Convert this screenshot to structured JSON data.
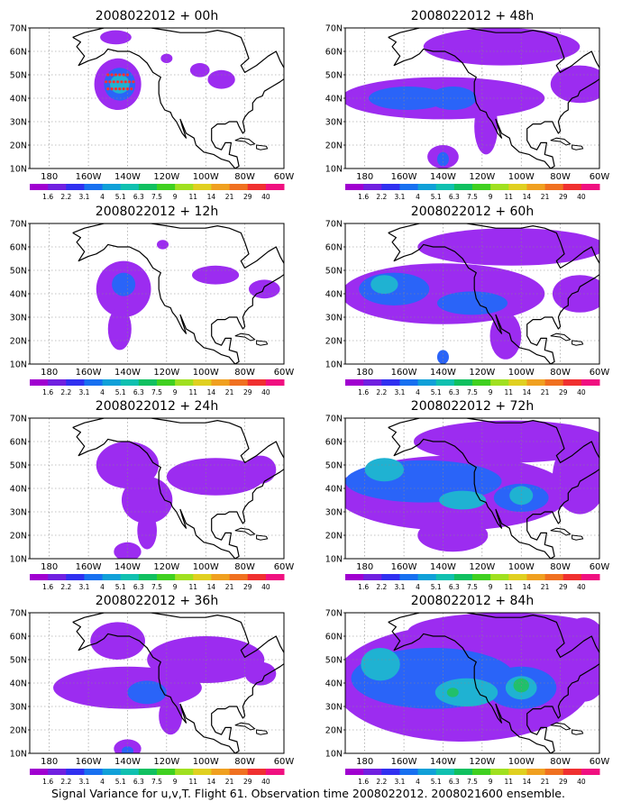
{
  "panels": [
    {
      "title": "2008022012 + 00h",
      "lead": "00h",
      "blobs": [
        {
          "lon": -145,
          "lat": 46,
          "rx": 12,
          "ry": 11,
          "level": 0
        },
        {
          "lon": -144,
          "lat": 46,
          "rx": 8,
          "ry": 7,
          "level": 1
        },
        {
          "lon": -144,
          "lat": 46,
          "rx": 5,
          "ry": 4,
          "level": 2
        },
        {
          "lon": -146,
          "lat": 66,
          "rx": 8,
          "ry": 3,
          "level": 0
        },
        {
          "lon": -120,
          "lat": 57,
          "rx": 3,
          "ry": 2,
          "level": 0
        },
        {
          "lon": -103,
          "lat": 52,
          "rx": 5,
          "ry": 3,
          "level": 0
        },
        {
          "lon": -92,
          "lat": 48,
          "rx": 7,
          "ry": 4,
          "level": 0
        }
      ],
      "stars": [
        [
          -150,
          44
        ],
        [
          -148,
          44
        ],
        [
          -146,
          44
        ],
        [
          -144,
          44
        ],
        [
          -142,
          44
        ],
        [
          -140,
          44
        ],
        [
          -138,
          44
        ],
        [
          -151,
          47
        ],
        [
          -149,
          47
        ],
        [
          -147,
          47
        ],
        [
          -145,
          47
        ],
        [
          -143,
          47
        ],
        [
          -141,
          47
        ],
        [
          -139,
          47
        ],
        [
          -137,
          47
        ],
        [
          -150,
          50
        ],
        [
          -148,
          50
        ],
        [
          -146,
          50
        ],
        [
          -144,
          50
        ],
        [
          -142,
          50
        ],
        [
          -140,
          50
        ]
      ]
    },
    {
      "title": "2008022012 + 48h",
      "lead": "48h",
      "blobs": [
        {
          "lon": -140,
          "lat": 40,
          "rx": 52,
          "ry": 9,
          "level": 0
        },
        {
          "lon": -110,
          "lat": 62,
          "rx": 40,
          "ry": 8,
          "level": 0
        },
        {
          "lon": -70,
          "lat": 46,
          "rx": 15,
          "ry": 8,
          "level": 0
        },
        {
          "lon": -118,
          "lat": 28,
          "rx": 6,
          "ry": 12,
          "level": 0
        },
        {
          "lon": -140,
          "lat": 15,
          "rx": 8,
          "ry": 5,
          "level": 0
        },
        {
          "lon": -158,
          "lat": 40,
          "rx": 20,
          "ry": 5,
          "level": 1
        },
        {
          "lon": -135,
          "lat": 40,
          "rx": 12,
          "ry": 5,
          "level": 1
        },
        {
          "lon": -140,
          "lat": 14,
          "rx": 3,
          "ry": 3,
          "level": 1
        }
      ],
      "stars": []
    },
    {
      "title": "2008022012 + 12h",
      "lead": "12h",
      "blobs": [
        {
          "lon": -142,
          "lat": 42,
          "rx": 14,
          "ry": 12,
          "level": 0
        },
        {
          "lon": -144,
          "lat": 25,
          "rx": 6,
          "ry": 9,
          "level": 0
        },
        {
          "lon": -95,
          "lat": 48,
          "rx": 12,
          "ry": 4,
          "level": 0
        },
        {
          "lon": -70,
          "lat": 42,
          "rx": 8,
          "ry": 4,
          "level": 0
        },
        {
          "lon": -122,
          "lat": 61,
          "rx": 3,
          "ry": 2,
          "level": 0
        },
        {
          "lon": -142,
          "lat": 44,
          "rx": 6,
          "ry": 5,
          "level": 1
        }
      ],
      "stars": []
    },
    {
      "title": "2008022012 + 60h",
      "lead": "60h",
      "blobs": [
        {
          "lon": -140,
          "lat": 40,
          "rx": 52,
          "ry": 13,
          "level": 0
        },
        {
          "lon": -105,
          "lat": 60,
          "rx": 48,
          "ry": 8,
          "level": 0
        },
        {
          "lon": -70,
          "lat": 40,
          "rx": 14,
          "ry": 8,
          "level": 0
        },
        {
          "lon": -108,
          "lat": 22,
          "rx": 8,
          "ry": 10,
          "level": 0
        },
        {
          "lon": -165,
          "lat": 42,
          "rx": 18,
          "ry": 7,
          "level": 1
        },
        {
          "lon": -125,
          "lat": 36,
          "rx": 18,
          "ry": 5,
          "level": 1
        },
        {
          "lon": -140,
          "lat": 13,
          "rx": 3,
          "ry": 3,
          "level": 1
        },
        {
          "lon": -170,
          "lat": 44,
          "rx": 7,
          "ry": 4,
          "level": 2
        }
      ],
      "stars": []
    },
    {
      "title": "2008022012 + 24h",
      "lead": "24h",
      "blobs": [
        {
          "lon": -140,
          "lat": 50,
          "rx": 16,
          "ry": 10,
          "level": 0
        },
        {
          "lon": -130,
          "lat": 35,
          "rx": 13,
          "ry": 10,
          "level": 0
        },
        {
          "lon": -130,
          "lat": 22,
          "rx": 5,
          "ry": 8,
          "level": 0
        },
        {
          "lon": -95,
          "lat": 45,
          "rx": 25,
          "ry": 8,
          "level": 0
        },
        {
          "lon": -140,
          "lat": 13,
          "rx": 7,
          "ry": 4,
          "level": 0
        },
        {
          "lon": -72,
          "lat": 48,
          "rx": 8,
          "ry": 6,
          "level": 0
        }
      ],
      "stars": []
    },
    {
      "title": "2008022012 + 72h",
      "lead": "72h",
      "blobs": [
        {
          "lon": -135,
          "lat": 38,
          "rx": 60,
          "ry": 16,
          "level": 0
        },
        {
          "lon": -105,
          "lat": 60,
          "rx": 50,
          "ry": 9,
          "level": 0
        },
        {
          "lon": -70,
          "lat": 45,
          "rx": 14,
          "ry": 16,
          "level": 0
        },
        {
          "lon": -135,
          "lat": 20,
          "rx": 18,
          "ry": 7,
          "level": 0
        },
        {
          "lon": -150,
          "lat": 43,
          "rx": 40,
          "ry": 9,
          "level": 1
        },
        {
          "lon": -100,
          "lat": 36,
          "rx": 14,
          "ry": 6,
          "level": 1
        },
        {
          "lon": -170,
          "lat": 48,
          "rx": 10,
          "ry": 5,
          "level": 2
        },
        {
          "lon": -130,
          "lat": 35,
          "rx": 12,
          "ry": 4,
          "level": 2
        },
        {
          "lon": -100,
          "lat": 37,
          "rx": 6,
          "ry": 4,
          "level": 2
        }
      ],
      "stars": []
    },
    {
      "title": "2008022012 + 36h",
      "lead": "36h",
      "blobs": [
        {
          "lon": -140,
          "lat": 38,
          "rx": 38,
          "ry": 9,
          "level": 0
        },
        {
          "lon": -145,
          "lat": 58,
          "rx": 14,
          "ry": 8,
          "level": 0
        },
        {
          "lon": -100,
          "lat": 50,
          "rx": 30,
          "ry": 10,
          "level": 0
        },
        {
          "lon": -72,
          "lat": 44,
          "rx": 8,
          "ry": 5,
          "level": 0
        },
        {
          "lon": -118,
          "lat": 26,
          "rx": 6,
          "ry": 8,
          "level": 0
        },
        {
          "lon": -140,
          "lat": 12,
          "rx": 7,
          "ry": 4,
          "level": 0
        },
        {
          "lon": -130,
          "lat": 36,
          "rx": 10,
          "ry": 5,
          "level": 1
        },
        {
          "lon": -140,
          "lat": 11,
          "rx": 3,
          "ry": 2,
          "level": 1
        }
      ],
      "stars": []
    },
    {
      "title": "2008022012 + 84h",
      "lead": "84h",
      "blobs": [
        {
          "lon": -130,
          "lat": 40,
          "rx": 66,
          "ry": 25,
          "level": 0
        },
        {
          "lon": -108,
          "lat": 62,
          "rx": 50,
          "ry": 8,
          "level": 0
        },
        {
          "lon": -68,
          "lat": 50,
          "rx": 14,
          "ry": 18,
          "level": 0
        },
        {
          "lon": -145,
          "lat": 42,
          "rx": 42,
          "ry": 13,
          "level": 1
        },
        {
          "lon": -100,
          "lat": 38,
          "rx": 18,
          "ry": 9,
          "level": 1
        },
        {
          "lon": -172,
          "lat": 48,
          "rx": 10,
          "ry": 7,
          "level": 2
        },
        {
          "lon": -128,
          "lat": 36,
          "rx": 16,
          "ry": 6,
          "level": 2
        },
        {
          "lon": -100,
          "lat": 38,
          "rx": 8,
          "ry": 5,
          "level": 2
        },
        {
          "lon": -100,
          "lat": 39,
          "rx": 4,
          "ry": 3,
          "level": 3
        },
        {
          "lon": -135,
          "lat": 36,
          "rx": 3,
          "ry": 2,
          "level": 3
        }
      ],
      "stars": []
    }
  ],
  "axes": {
    "lon_ticks": [
      "180",
      "160W",
      "140W",
      "120W",
      "100W",
      "80W",
      "60W"
    ],
    "lat_ticks": [
      "10N",
      "20N",
      "30N",
      "40N",
      "50N",
      "60N",
      "70N"
    ],
    "lon_range": [
      -190,
      -60
    ],
    "lat_range": [
      10,
      70
    ]
  },
  "colorbar": {
    "labels": [
      "1.6",
      "2.2",
      "3.1",
      "4",
      "5.1",
      "6.3",
      "7.5",
      "9",
      "11",
      "14",
      "21",
      "29",
      "40"
    ],
    "colors": [
      "#a000d0",
      "#7020e0",
      "#3030f0",
      "#1870f0",
      "#10a0d8",
      "#10c0b0",
      "#10c060",
      "#40d020",
      "#a0e020",
      "#e0d020",
      "#f0a020",
      "#f07020",
      "#f03030",
      "#f01080"
    ]
  },
  "level_colors": [
    "#9c2cf0",
    "#2a64f8",
    "#1fb2d2",
    "#21c06a"
  ],
  "marker_color": "#ff3030",
  "caption": "Signal Variance for u,v,T. Flight 61. Observation time 2008022012. 2008021600 ensemble."
}
